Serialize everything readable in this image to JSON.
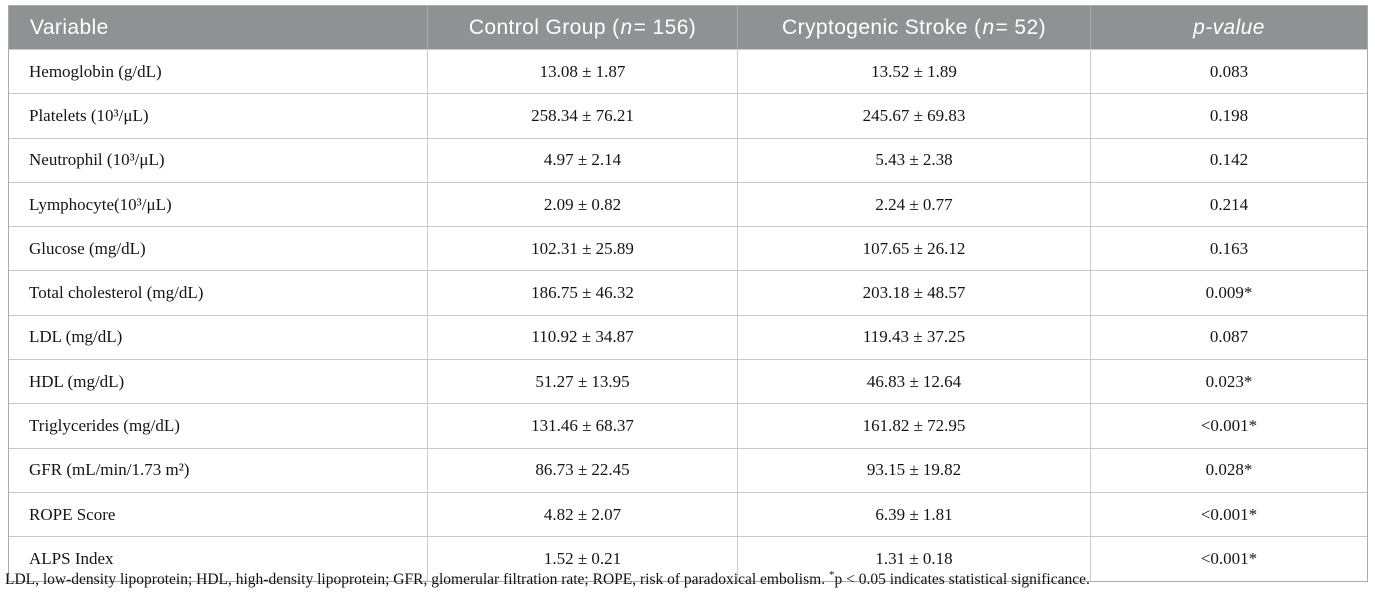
{
  "table": {
    "header": {
      "variable": "Variable",
      "control": {
        "pre": "Control Group (",
        "n_var": "n",
        "post": " = 156)"
      },
      "stroke": {
        "pre": "Cryptogenic Stroke (",
        "n_var": "n",
        "post": " = 52)"
      },
      "pvalue": "p-value"
    },
    "rows": [
      {
        "variable": "Hemoglobin (g/dL)",
        "control": "13.08 ± 1.87",
        "stroke": "13.52 ± 1.89",
        "p": "0.083"
      },
      {
        "variable": "Platelets (10³/μL)",
        "control": "258.34 ± 76.21",
        "stroke": "245.67 ± 69.83",
        "p": "0.198"
      },
      {
        "variable": "Neutrophil (10³/μL)",
        "control": "4.97 ± 2.14",
        "stroke": "5.43 ± 2.38",
        "p": "0.142"
      },
      {
        "variable": "Lymphocyte(10³/μL)",
        "control": "2.09 ± 0.82",
        "stroke": "2.24 ± 0.77",
        "p": "0.214"
      },
      {
        "variable": "Glucose (mg/dL)",
        "control": "102.31 ± 25.89",
        "stroke": "107.65 ± 26.12",
        "p": "0.163"
      },
      {
        "variable": "Total cholesterol (mg/dL)",
        "control": "186.75 ± 46.32",
        "stroke": "203.18 ± 48.57",
        "p": "0.009*"
      },
      {
        "variable": "LDL (mg/dL)",
        "control": "110.92 ± 34.87",
        "stroke": "119.43 ± 37.25",
        "p": "0.087"
      },
      {
        "variable": "HDL (mg/dL)",
        "control": "51.27 ± 13.95",
        "stroke": "46.83 ± 12.64",
        "p": "0.023*"
      },
      {
        "variable": "Triglycerides (mg/dL)",
        "control": "131.46 ± 68.37",
        "stroke": "161.82 ± 72.95",
        "p": "<0.001*"
      },
      {
        "variable": "GFR (mL/min/1.73 m²)",
        "control": "86.73 ± 22.45",
        "stroke": "93.15 ± 19.82",
        "p": "0.028*"
      },
      {
        "variable": "ROPE Score",
        "control": "4.82 ± 2.07",
        "stroke": "6.39 ± 1.81",
        "p": "<0.001*"
      },
      {
        "variable": "ALPS Index",
        "control": "1.52 ± 0.21",
        "stroke": "1.31 ± 0.18",
        "p": "<0.001*"
      }
    ],
    "footnote": {
      "abbrev": "LDL, low-density lipoprotein; HDL, high-density lipoprotein; GFR, glomerular filtration rate; ROPE, risk of paradoxical embolism. ",
      "star": "*",
      "sig": "p < 0.05 indicates statistical significance."
    },
    "colors": {
      "header_bg": "#8e9293",
      "header_text": "#ffffff",
      "inner_border": "#c7caca",
      "outer_border": "#a8acac",
      "body_text": "#141414"
    }
  }
}
